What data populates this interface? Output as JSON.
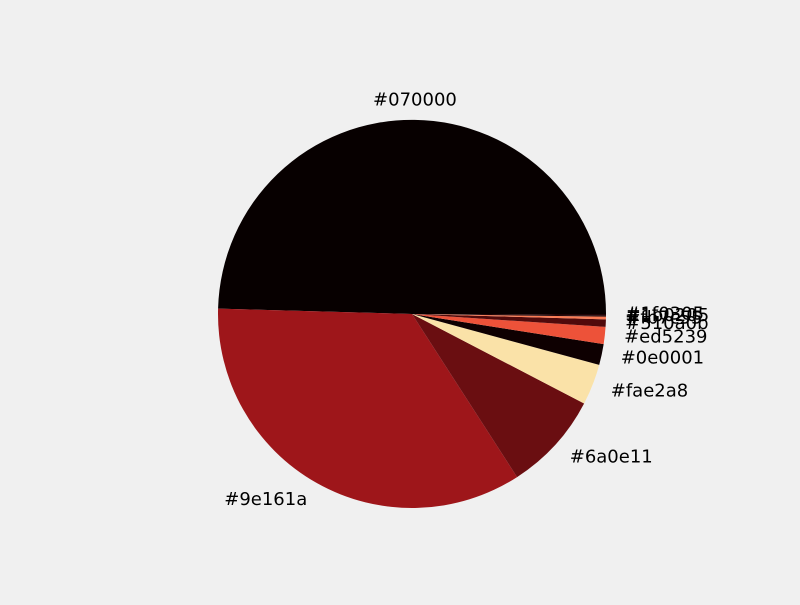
{
  "background_color": "#f0f0f0",
  "chart_data": {
    "type": "pie",
    "title": "",
    "start_angle_deg": 0,
    "direction": "counterclockwise",
    "slices": [
      {
        "label": "#070000",
        "value": 50.0,
        "color": "#070000"
      },
      {
        "label": "#9e161a",
        "value": 34.86,
        "color": "#9e161a"
      },
      {
        "label": "#6a0e11",
        "value": 8.33,
        "color": "#6a0e11"
      },
      {
        "label": "#fae2a8",
        "value": 3.44,
        "color": "#fae2a8"
      },
      {
        "label": "#0e0001",
        "value": 1.76,
        "color": "#0e0001"
      },
      {
        "label": "#ed5239",
        "value": 1.43,
        "color": "#ed5239"
      },
      {
        "label": "#510a0b",
        "value": 0.63,
        "color": "#510a0b"
      },
      {
        "label": "#fb7c55",
        "value": 0.22,
        "color": "#fb7c55"
      },
      {
        "label": "#1b0205",
        "value": 0.11,
        "color": "#1b0205"
      },
      {
        "label": "#1f0305",
        "value": 0.11,
        "color": "#1f0305"
      }
    ]
  }
}
